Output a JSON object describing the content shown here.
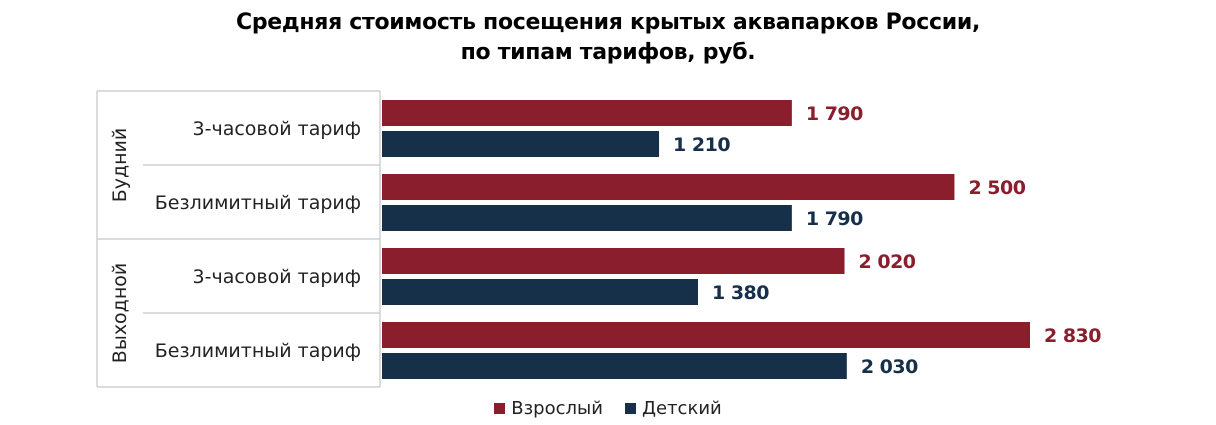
{
  "chart_data": {
    "type": "bar",
    "orientation": "horizontal",
    "title": [
      "Средняя стоимость посещения крытых аквапарков России,",
      "по типам тарифов, руб."
    ],
    "groups": [
      {
        "name": "Будний",
        "categories": [
          "3-часовой тариф",
          "Безлимитный тариф"
        ]
      },
      {
        "name": "Выходной",
        "categories": [
          "3-часовой тариф",
          "Безлимитный тариф"
        ]
      }
    ],
    "series": [
      {
        "name": "Взрослый",
        "color": "#8b1e2c",
        "values": [
          1790,
          2500,
          2020,
          2830
        ],
        "labels": [
          "1 790",
          "2 500",
          "2 020",
          "2 830"
        ]
      },
      {
        "name": "Детский",
        "color": "#17304a",
        "values": [
          1210,
          1790,
          1380,
          2030
        ],
        "labels": [
          "1 210",
          "1 790",
          "1 380",
          "2 030"
        ]
      }
    ],
    "xlim": [
      0,
      2830
    ],
    "grid": false,
    "legend": "bottom"
  }
}
